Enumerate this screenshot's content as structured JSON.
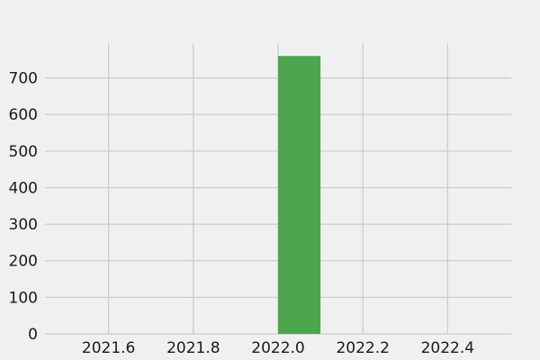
{
  "chart_data": {
    "type": "bar",
    "bars": [
      {
        "x_start": 2022.0,
        "x_end": 2022.1,
        "value": 760
      }
    ],
    "xlim": [
      2021.45,
      2022.55
    ],
    "ylim": [
      0,
      795
    ],
    "x_ticks": [
      2021.6,
      2021.8,
      2022.0,
      2022.2,
      2022.4
    ],
    "x_tick_labels": [
      "2021.6",
      "2021.8",
      "2022.0",
      "2022.2",
      "2022.4"
    ],
    "y_ticks": [
      0,
      100,
      200,
      300,
      400,
      500,
      600,
      700
    ],
    "y_tick_labels": [
      "0",
      "100",
      "200",
      "300",
      "400",
      "500",
      "600",
      "700"
    ],
    "bar_color": "#4da64d",
    "grid": true,
    "title": "",
    "xlabel": "",
    "ylabel": ""
  },
  "colors": {
    "background": "#f0f0f0",
    "grid": "#cbcbcb"
  }
}
